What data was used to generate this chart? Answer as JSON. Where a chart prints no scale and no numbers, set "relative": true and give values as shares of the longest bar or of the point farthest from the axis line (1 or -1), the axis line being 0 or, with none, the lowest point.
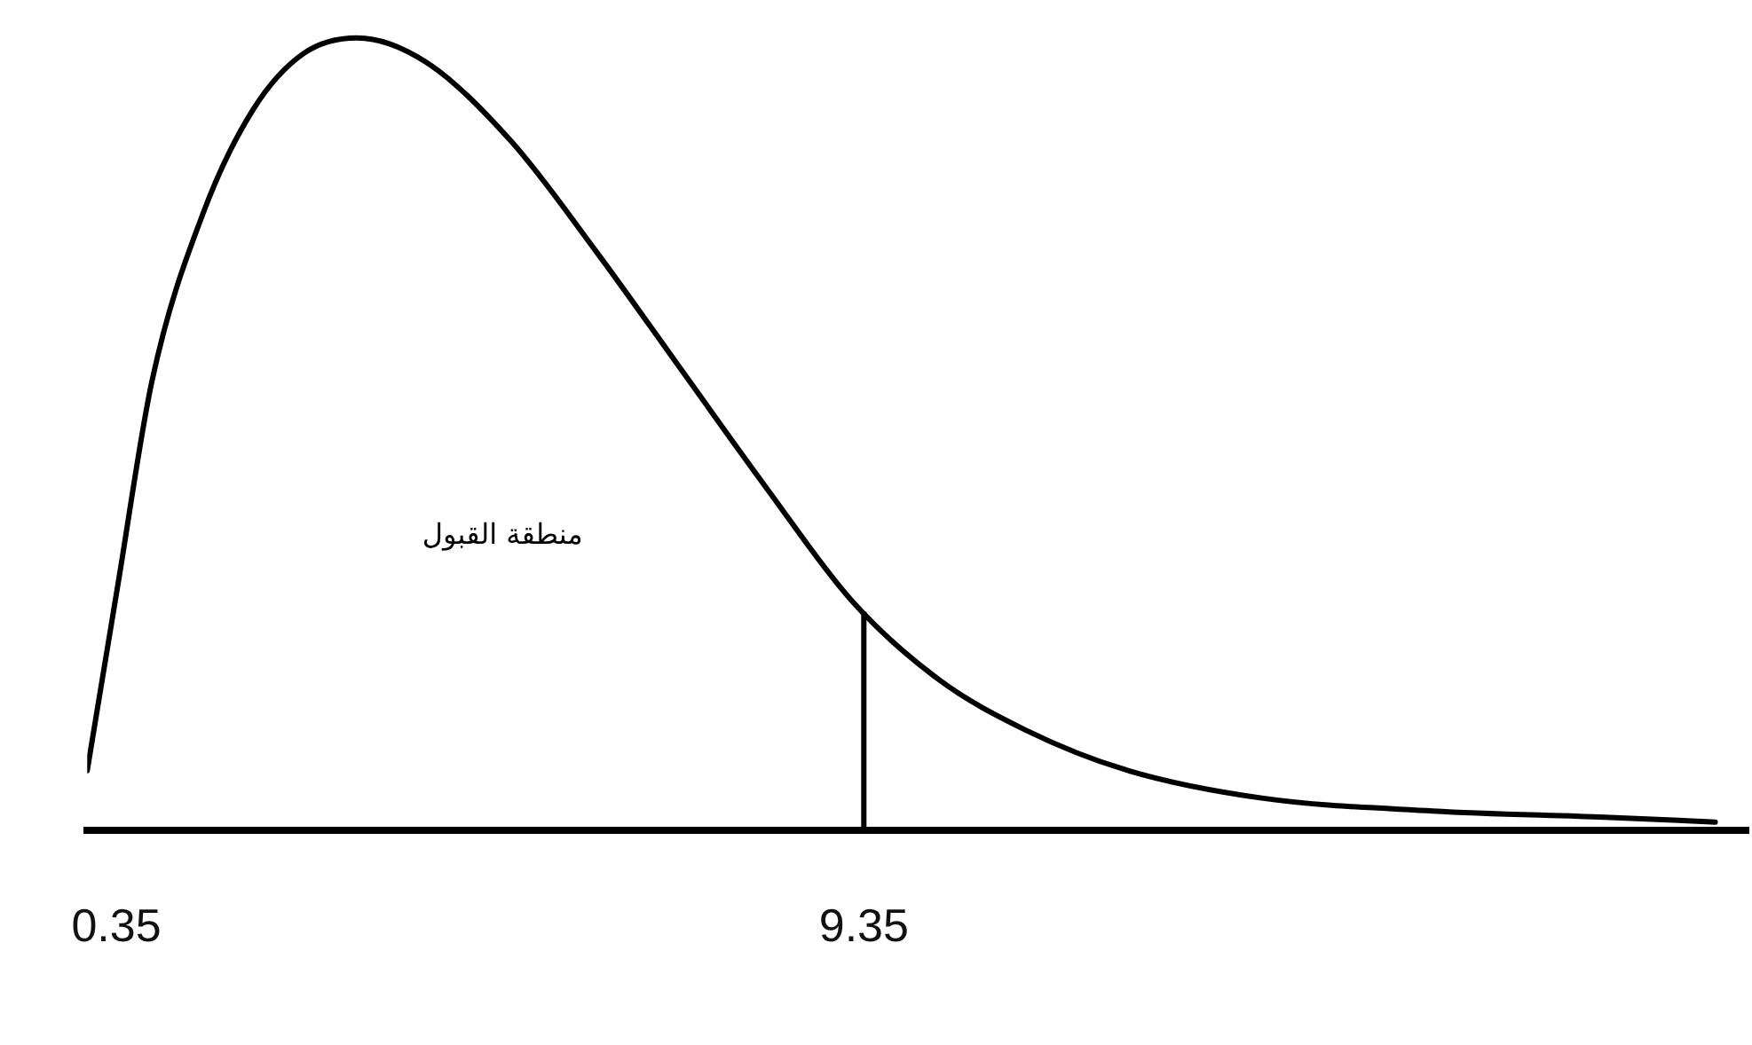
{
  "chart_data": {
    "type": "line",
    "relative": true,
    "color": "#000000",
    "marker": "none",
    "line_style": "solid",
    "grid": false,
    "legend": false,
    "tick_labels": "x",
    "xlim": [
      0,
      20
    ],
    "xticks": [
      0.35,
      9.35
    ],
    "x": [
      0,
      0.37,
      0.78,
      1.4,
      2.0,
      2.6,
      3.25,
      4.07,
      5.1,
      6.13,
      7.16,
      8.19,
      9.2,
      10.25,
      11.3,
      12.5,
      14.16,
      16.2,
      18.27,
      19.6
    ],
    "values": [
      0.075,
      0.31,
      0.567,
      0.78,
      0.91,
      0.98,
      1.0,
      0.97,
      0.87,
      0.73,
      0.58,
      0.43,
      0.29,
      0.19,
      0.126,
      0.076,
      0.04,
      0.024,
      0.016,
      0.01
    ],
    "ref_lines": [
      {
        "axis": "x",
        "value": 9.35,
        "color": "#000000"
      }
    ],
    "annotations": [
      "منطقة القبول"
    ]
  }
}
